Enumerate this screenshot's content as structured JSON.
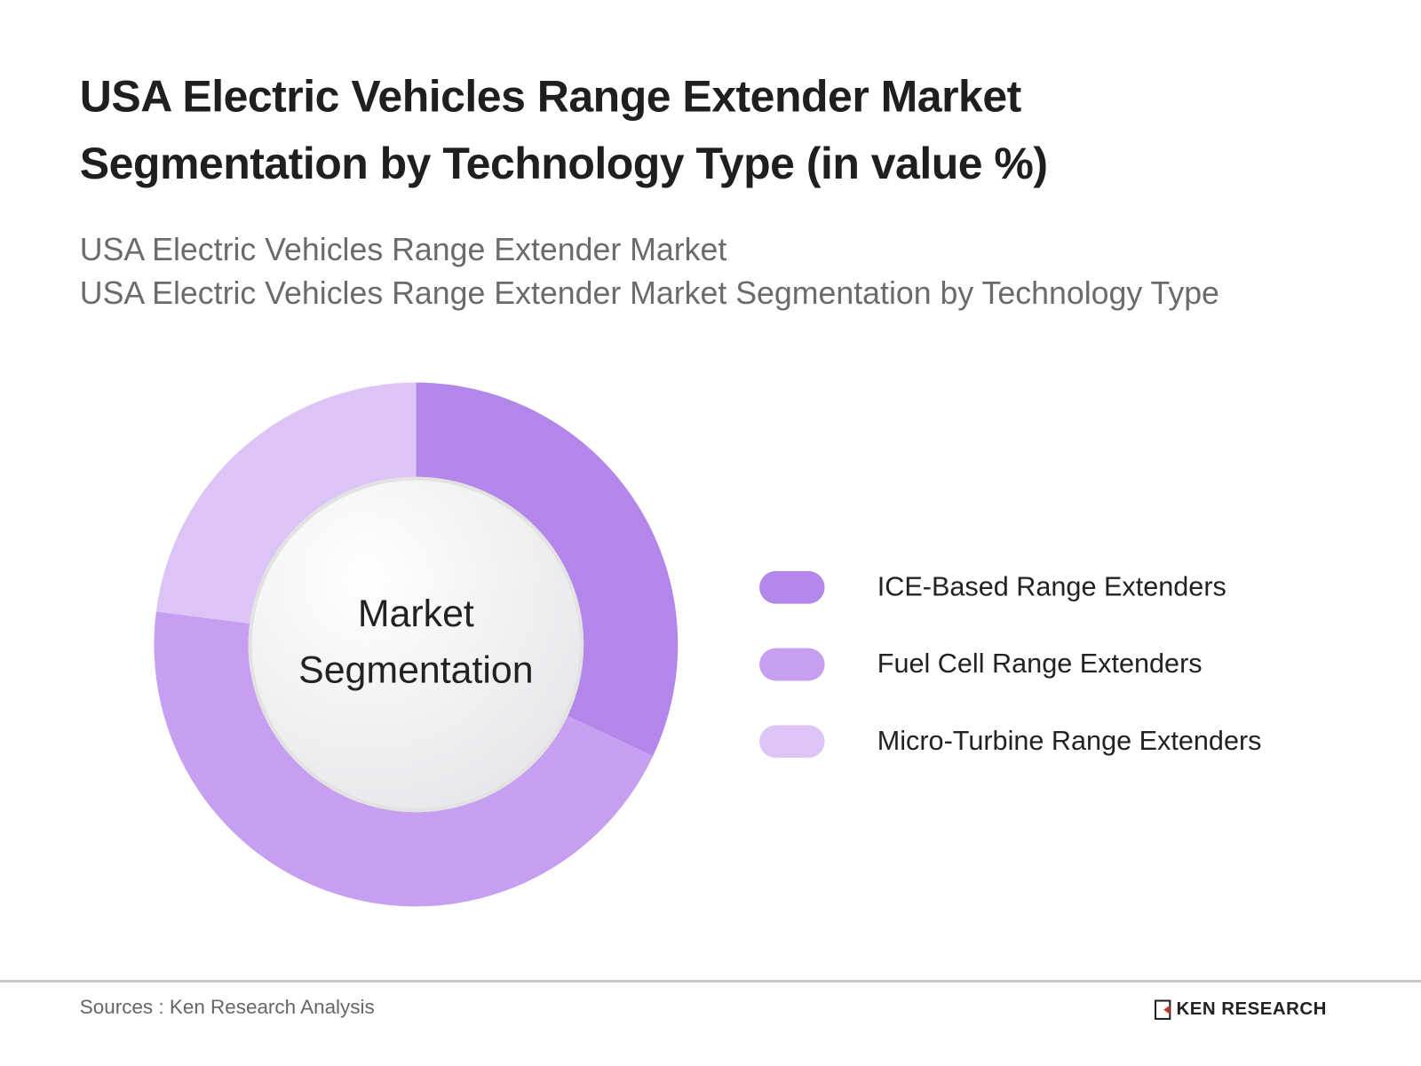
{
  "chart_data": {
    "type": "pie",
    "title": "USA Electric Vehicles Range Extender Market Segmentation by Technology Type (in value %)",
    "subtitle_lines": [
      "USA Electric Vehicles Range Extender Market",
      "USA Electric Vehicles Range Extender Market Segmentation by Technology Type"
    ],
    "center_label_lines": [
      "Market",
      "Segmentation"
    ],
    "donut": true,
    "legend_position": "right",
    "categories": [
      "ICE-Based Range Extenders",
      "Fuel Cell Range Extenders",
      "Micro-Turbine Range Extenders"
    ],
    "values": [
      32,
      45,
      23
    ],
    "colors": [
      "#b386ea",
      "#c79ff0",
      "#dcc4f6"
    ]
  },
  "footer": {
    "source": "Sources : Ken Research Analysis",
    "logo_text": "KEN RESEARCH"
  }
}
